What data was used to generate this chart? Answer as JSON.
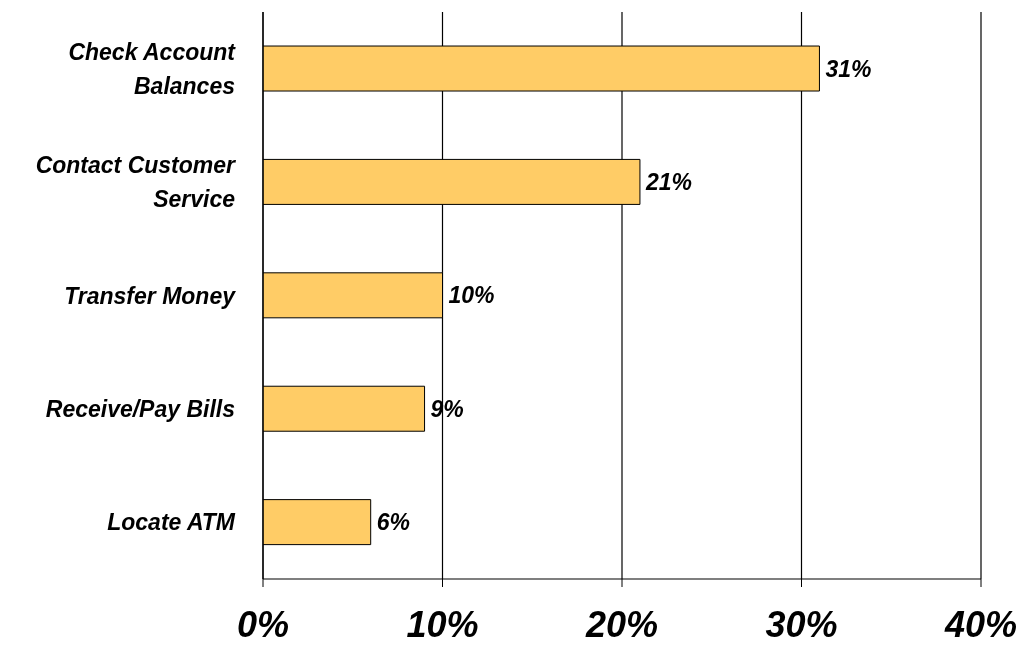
{
  "chart_data": {
    "type": "bar",
    "orientation": "horizontal",
    "categories": [
      "Check Account Balances",
      "Contact Customer Service",
      "Transfer Money",
      "Receive/Pay Bills",
      "Locate ATM"
    ],
    "values": [
      31,
      21,
      10,
      9,
      6
    ],
    "value_labels": [
      "31%",
      "21%",
      "10%",
      "9%",
      "6%"
    ],
    "color": "#ffcc66",
    "xlim": [
      0,
      40
    ],
    "xticks": [
      {
        "value": 0,
        "label": "0%"
      },
      {
        "value": 10,
        "label": "10%"
      },
      {
        "value": 20,
        "label": "20%"
      },
      {
        "value": 30,
        "label": "30%"
      },
      {
        "value": 40,
        "label": "40%"
      }
    ],
    "grid": "x"
  }
}
